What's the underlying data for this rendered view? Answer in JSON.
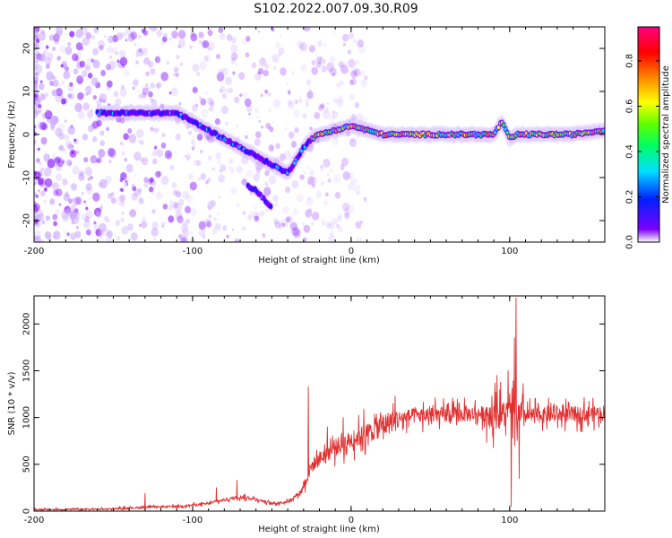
{
  "title": "S102.2022.007.09.30.R09",
  "chart_data": [
    {
      "type": "heatmap",
      "xlabel": "Height of straight line (km)",
      "ylabel": "Frequency (Hz)",
      "xlim": [
        -200,
        160
      ],
      "ylim": [
        -25,
        25
      ],
      "xticks": [
        -200,
        -100,
        0,
        100
      ],
      "yticks": [
        -20,
        -10,
        0,
        10,
        20
      ],
      "ridge": [
        [
          -160,
          5
        ],
        [
          -150,
          5
        ],
        [
          -140,
          5
        ],
        [
          -130,
          5
        ],
        [
          -120,
          5
        ],
        [
          -110,
          5
        ],
        [
          -100,
          3
        ],
        [
          -90,
          1
        ],
        [
          -80,
          -1
        ],
        [
          -70,
          -3
        ],
        [
          -60,
          -5
        ],
        [
          -50,
          -7
        ],
        [
          -40,
          -9
        ],
        [
          -35,
          -6
        ],
        [
          -30,
          -3
        ],
        [
          -25,
          -1
        ],
        [
          -20,
          0
        ],
        [
          -10,
          1
        ],
        [
          0,
          2
        ],
        [
          10,
          1
        ],
        [
          20,
          0
        ],
        [
          40,
          0
        ],
        [
          60,
          0
        ],
        [
          80,
          0
        ],
        [
          90,
          0
        ],
        [
          95,
          3
        ],
        [
          100,
          -1
        ],
        [
          105,
          0
        ],
        [
          120,
          0
        ],
        [
          140,
          0
        ],
        [
          160,
          1
        ]
      ],
      "branch": [
        [
          -65,
          -12
        ],
        [
          -60,
          -13
        ],
        [
          -55,
          -15
        ],
        [
          -50,
          -17
        ]
      ],
      "colorbar": {
        "label": "Normalized spectral amplitude",
        "range": [
          0,
          0.95
        ],
        "ticks": [
          0.0,
          0.2,
          0.4,
          0.6,
          0.8
        ]
      }
    },
    {
      "type": "line",
      "xlabel": "Height of straight line (km)",
      "ylabel": "SNR (10 * v/v)",
      "xlim": [
        -200,
        160
      ],
      "ylim": [
        0,
        2300
      ],
      "xticks": [
        -200,
        -100,
        0,
        100
      ],
      "yticks": [
        0,
        500,
        1000,
        1500,
        2000
      ],
      "color": "#e03030",
      "baseline": [
        [
          -200,
          15
        ],
        [
          -160,
          20
        ],
        [
          -130,
          40
        ],
        [
          -110,
          50
        ],
        [
          -90,
          80
        ],
        [
          -80,
          120
        ],
        [
          -70,
          150
        ],
        [
          -60,
          130
        ],
        [
          -50,
          80
        ],
        [
          -40,
          100
        ],
        [
          -32,
          200
        ],
        [
          -28,
          350
        ],
        [
          -25,
          480
        ],
        [
          -20,
          560
        ],
        [
          -10,
          680
        ],
        [
          0,
          760
        ],
        [
          10,
          830
        ],
        [
          20,
          920
        ],
        [
          30,
          990
        ],
        [
          40,
          1020
        ],
        [
          60,
          1030
        ],
        [
          80,
          1040
        ],
        [
          90,
          1040
        ],
        [
          100,
          1030
        ],
        [
          110,
          1020
        ],
        [
          130,
          1030
        ],
        [
          150,
          1040
        ],
        [
          160,
          1050
        ]
      ],
      "spikes": [
        [
          -130,
          190
        ],
        [
          -85,
          250
        ],
        [
          -72,
          330
        ],
        [
          -27,
          1330
        ],
        [
          -15,
          900
        ],
        [
          -5,
          1000
        ],
        [
          8,
          1090
        ],
        [
          92,
          1450
        ],
        [
          99,
          1500
        ],
        [
          101,
          50
        ],
        [
          103,
          1850
        ],
        [
          104,
          2280
        ],
        [
          106,
          350
        ]
      ]
    }
  ]
}
